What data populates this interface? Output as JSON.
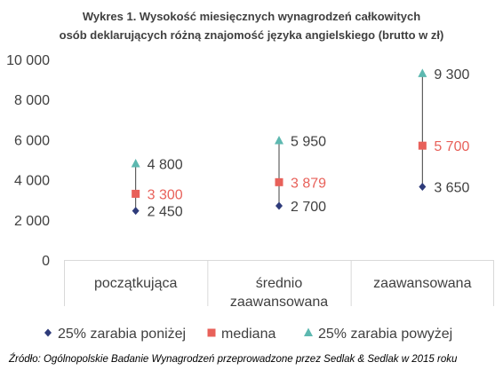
{
  "title_line1": "Wykres 1. Wysokość miesięcznych wynagrodzeń całkowitych",
  "title_line2": "osób deklarujących różną znajomość języka angielskiego (brutto w zł)",
  "source": "Źródło: Ogólnopolskie Badanie Wynagrodzeń przeprowadzone przez Sedlak & Sedlak w 2015 roku",
  "colors": {
    "low": "#2E3B7A",
    "median": "#E8615A",
    "high": "#5DB8B0",
    "axis_text": "#404040",
    "grid": "#D9D9D9",
    "whisker": "#404040"
  },
  "chart_data": {
    "type": "scatter",
    "title": "Wykres 1. Wysokość miesięcznych wynagrodzeń całkowitych osób deklarujących różną znajomość języka angielskiego (brutto w zł)",
    "categories": [
      [
        "początkująca"
      ],
      [
        "średnio",
        "zaawansowana"
      ],
      [
        "zaawansowana"
      ]
    ],
    "series": [
      {
        "name": "25% zarabia poniżej",
        "key": "low",
        "marker": "diamond",
        "values": [
          2450,
          2700,
          3650
        ],
        "labels": [
          "2 450",
          "2 700",
          "3 650"
        ]
      },
      {
        "name": "mediana",
        "key": "median",
        "marker": "square",
        "values": [
          3300,
          3879,
          5700
        ],
        "labels": [
          "3 300",
          "3 879",
          "5 700"
        ]
      },
      {
        "name": "25% zarabia powyżej",
        "key": "high",
        "marker": "triangle",
        "values": [
          4800,
          5950,
          9300
        ],
        "labels": [
          "4 800",
          "5 950",
          "9 300"
        ]
      }
    ],
    "ylim": [
      0,
      10000
    ],
    "yticks": [
      0,
      2000,
      4000,
      6000,
      8000,
      10000
    ],
    "ytick_labels": [
      "0",
      "2 000",
      "4 000",
      "6 000",
      "8 000",
      "10 000"
    ],
    "xlabel": "",
    "ylabel": "",
    "legend_position": "bottom",
    "grid": false
  }
}
